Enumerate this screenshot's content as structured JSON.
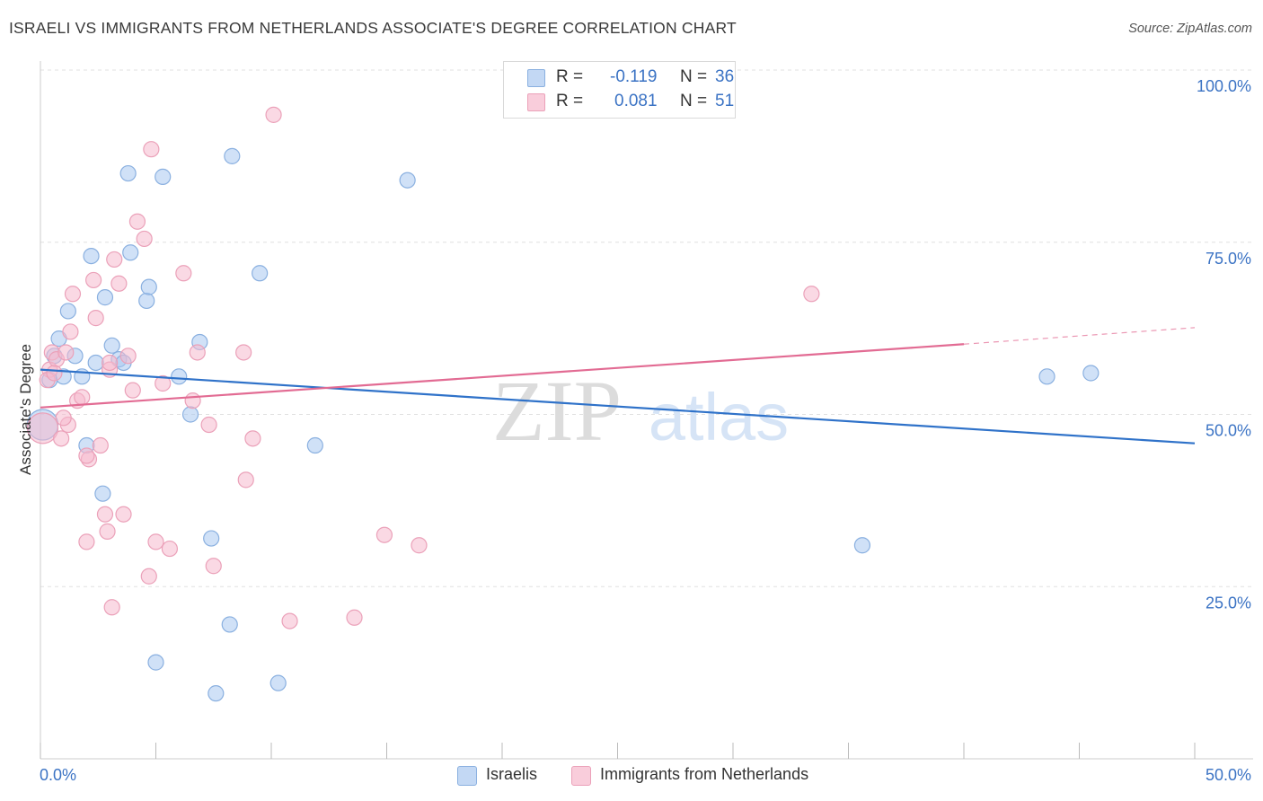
{
  "title": "ISRAELI VS IMMIGRANTS FROM NETHERLANDS ASSOCIATE'S DEGREE CORRELATION CHART",
  "source": "Source: ZipAtlas.com",
  "watermark": {
    "zip": "ZIP",
    "atlas": "atlas"
  },
  "legend": {
    "r_label": "R =",
    "n_label": "N =",
    "rows": [
      {
        "series": "Israelis",
        "r": "-0.119",
        "n": "36"
      },
      {
        "series": "Immigrants from Netherlands",
        "r": "0.081",
        "n": "51"
      }
    ]
  },
  "colors": {
    "blue_fill": "#a9c8f0",
    "blue_stroke": "#8ab0e0",
    "blue_line": "#2f72c9",
    "pink_fill": "#f6b9cd",
    "pink_stroke": "#eba1b9",
    "pink_line": "#e26b93",
    "axis_text": "#3b73c4",
    "grid": "#e0e0e0"
  },
  "chart_data": {
    "type": "scatter",
    "title": "ISRAELI VS IMMIGRANTS FROM NETHERLANDS ASSOCIATE'S DEGREE CORRELATION CHART",
    "xlabel": "",
    "ylabel": "Associate's Degree",
    "xlim": [
      0,
      50
    ],
    "ylim": [
      0,
      100
    ],
    "x_tick_labels": [
      "0.0%",
      "50.0%"
    ],
    "y_ticks": [
      25,
      50,
      75,
      100
    ],
    "y_tick_labels": [
      "25.0%",
      "50.0%",
      "75.0%",
      "100.0%"
    ],
    "grid": true,
    "legend_position": "top-center",
    "series": [
      {
        "name": "Israelis",
        "points": [
          [
            0.4,
            55.0
          ],
          [
            0.6,
            58.5
          ],
          [
            0.8,
            61.0
          ],
          [
            1.0,
            55.5
          ],
          [
            1.2,
            65.0
          ],
          [
            1.5,
            58.5
          ],
          [
            1.8,
            55.5
          ],
          [
            2.0,
            45.5
          ],
          [
            2.2,
            73.0
          ],
          [
            2.4,
            57.5
          ],
          [
            2.7,
            38.5
          ],
          [
            2.8,
            67.0
          ],
          [
            3.1,
            60.0
          ],
          [
            3.4,
            58.0
          ],
          [
            3.6,
            57.5
          ],
          [
            3.8,
            85.0
          ],
          [
            3.9,
            73.5
          ],
          [
            4.6,
            66.5
          ],
          [
            4.7,
            68.5
          ],
          [
            5.3,
            84.5
          ],
          [
            6.0,
            55.5
          ],
          [
            6.5,
            50.0
          ],
          [
            6.9,
            60.5
          ],
          [
            7.4,
            32.0
          ],
          [
            7.6,
            9.5
          ],
          [
            8.2,
            19.5
          ],
          [
            8.3,
            87.5
          ],
          [
            9.5,
            70.5
          ],
          [
            10.3,
            11.0
          ],
          [
            11.9,
            45.5
          ],
          [
            15.9,
            84.0
          ],
          [
            35.6,
            31.0
          ],
          [
            43.6,
            55.5
          ],
          [
            45.5,
            56.0
          ],
          [
            5.0,
            14.0
          ],
          [
            0.1,
            48.5
          ]
        ]
      },
      {
        "name": "Immigrants from Netherlands",
        "points": [
          [
            0.1,
            48.0
          ],
          [
            0.4,
            56.5
          ],
          [
            0.5,
            59.0
          ],
          [
            0.7,
            58.0
          ],
          [
            0.9,
            46.5
          ],
          [
            1.1,
            59.0
          ],
          [
            1.2,
            48.5
          ],
          [
            1.4,
            67.5
          ],
          [
            1.6,
            52.0
          ],
          [
            1.8,
            52.5
          ],
          [
            2.0,
            31.5
          ],
          [
            2.1,
            43.5
          ],
          [
            2.3,
            69.5
          ],
          [
            2.4,
            64.0
          ],
          [
            2.6,
            45.5
          ],
          [
            2.8,
            35.5
          ],
          [
            2.9,
            33.0
          ],
          [
            3.0,
            56.5
          ],
          [
            3.2,
            72.5
          ],
          [
            3.4,
            69.0
          ],
          [
            3.6,
            35.5
          ],
          [
            3.8,
            58.5
          ],
          [
            4.0,
            53.5
          ],
          [
            4.2,
            78.0
          ],
          [
            4.5,
            75.5
          ],
          [
            4.7,
            26.5
          ],
          [
            4.8,
            88.5
          ],
          [
            5.0,
            31.5
          ],
          [
            5.3,
            54.5
          ],
          [
            5.6,
            30.5
          ],
          [
            6.2,
            70.5
          ],
          [
            6.6,
            52.0
          ],
          [
            6.8,
            59.0
          ],
          [
            7.3,
            48.5
          ],
          [
            7.5,
            28.0
          ],
          [
            8.8,
            59.0
          ],
          [
            8.9,
            40.5
          ],
          [
            9.2,
            46.5
          ],
          [
            10.1,
            93.5
          ],
          [
            10.8,
            20.0
          ],
          [
            13.6,
            20.5
          ],
          [
            14.9,
            32.5
          ],
          [
            16.4,
            31.0
          ],
          [
            33.4,
            67.5
          ],
          [
            0.3,
            55.0
          ],
          [
            0.6,
            56.0
          ],
          [
            1.0,
            49.5
          ],
          [
            2.0,
            44.0
          ],
          [
            3.0,
            57.5
          ],
          [
            1.3,
            62.0
          ],
          [
            3.1,
            22.0
          ]
        ]
      }
    ],
    "trend_lines": [
      {
        "series": "Israelis",
        "x": [
          0,
          50
        ],
        "y": [
          56.5,
          45.8
        ]
      },
      {
        "series": "Immigrants from Netherlands",
        "x": [
          0,
          40,
          50
        ],
        "y": [
          51.0,
          60.2,
          62.6
        ]
      }
    ]
  }
}
